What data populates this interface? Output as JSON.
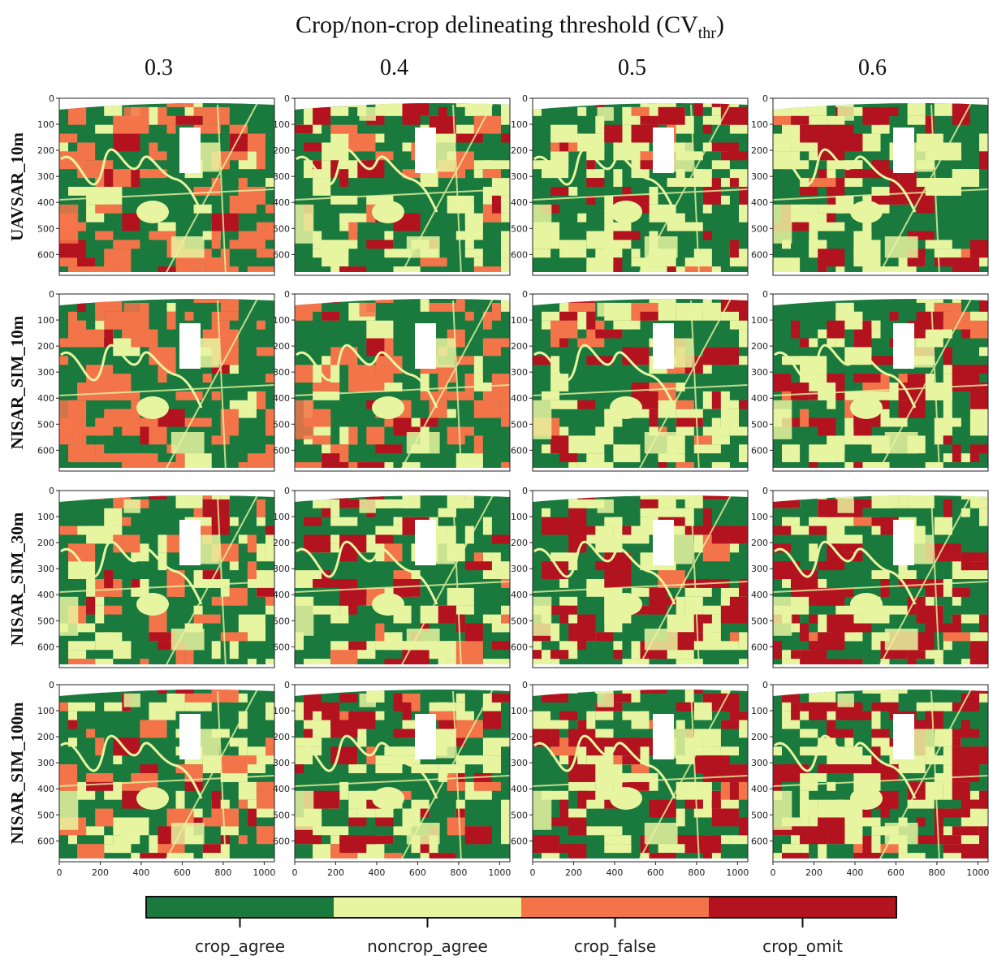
{
  "title": {
    "main": "Crop/non-crop delineating threshold (CV",
    "sub": "thr",
    "close": ")"
  },
  "colors": {
    "crop_agree": "#1a7a3e",
    "noncrop_agree": "#e8f5a0",
    "crop_false": "#f4744a",
    "crop_omit": "#b3121f",
    "nodata": "#ffffff"
  },
  "chart_data": {
    "type": "heatmap",
    "grid": "4x4 map panels",
    "columns": [
      "0.3",
      "0.4",
      "0.5",
      "0.6"
    ],
    "rows": [
      "UAVSAR_10m",
      "NISAR_SIM_10m",
      "NISAR_SIM_30m",
      "NISAR_SIM_100m"
    ],
    "x_ticks": [
      "0",
      "200",
      "400",
      "600",
      "800",
      "1000"
    ],
    "y_ticks": [
      "0",
      "100",
      "200",
      "300",
      "400",
      "500",
      "600"
    ],
    "xlim": [
      0,
      1050
    ],
    "ylim": [
      680,
      0
    ],
    "legend": {
      "placement": "bottom",
      "categories": [
        "crop_agree",
        "noncrop_agree",
        "crop_false",
        "crop_omit"
      ]
    },
    "category_fractions": [
      [
        {
          "crop_agree": 0.58,
          "noncrop_agree": 0.08,
          "crop_false": 0.3,
          "crop_omit": 0.04
        },
        {
          "crop_agree": 0.56,
          "noncrop_agree": 0.3,
          "crop_false": 0.06,
          "crop_omit": 0.08
        },
        {
          "crop_agree": 0.52,
          "noncrop_agree": 0.34,
          "crop_false": 0.02,
          "crop_omit": 0.12
        },
        {
          "crop_agree": 0.48,
          "noncrop_agree": 0.34,
          "crop_false": 0.02,
          "crop_omit": 0.16
        }
      ],
      [
        {
          "crop_agree": 0.6,
          "noncrop_agree": 0.04,
          "crop_false": 0.34,
          "crop_omit": 0.02
        },
        {
          "crop_agree": 0.6,
          "noncrop_agree": 0.12,
          "crop_false": 0.24,
          "crop_omit": 0.04
        },
        {
          "crop_agree": 0.56,
          "noncrop_agree": 0.28,
          "crop_false": 0.06,
          "crop_omit": 0.1
        },
        {
          "crop_agree": 0.5,
          "noncrop_agree": 0.3,
          "crop_false": 0.03,
          "crop_omit": 0.17
        }
      ],
      [
        {
          "crop_agree": 0.6,
          "noncrop_agree": 0.22,
          "crop_false": 0.14,
          "crop_omit": 0.04
        },
        {
          "crop_agree": 0.54,
          "noncrop_agree": 0.3,
          "crop_false": 0.04,
          "crop_omit": 0.12
        },
        {
          "crop_agree": 0.46,
          "noncrop_agree": 0.32,
          "crop_false": 0.02,
          "crop_omit": 0.2
        },
        {
          "crop_agree": 0.42,
          "noncrop_agree": 0.32,
          "crop_false": 0.01,
          "crop_omit": 0.25
        }
      ],
      [
        {
          "crop_agree": 0.58,
          "noncrop_agree": 0.22,
          "crop_false": 0.14,
          "crop_omit": 0.06
        },
        {
          "crop_agree": 0.5,
          "noncrop_agree": 0.32,
          "crop_false": 0.04,
          "crop_omit": 0.14
        },
        {
          "crop_agree": 0.42,
          "noncrop_agree": 0.32,
          "crop_false": 0.02,
          "crop_omit": 0.24
        },
        {
          "crop_agree": 0.36,
          "noncrop_agree": 0.32,
          "crop_false": 0.01,
          "crop_omit": 0.31
        }
      ]
    ]
  }
}
